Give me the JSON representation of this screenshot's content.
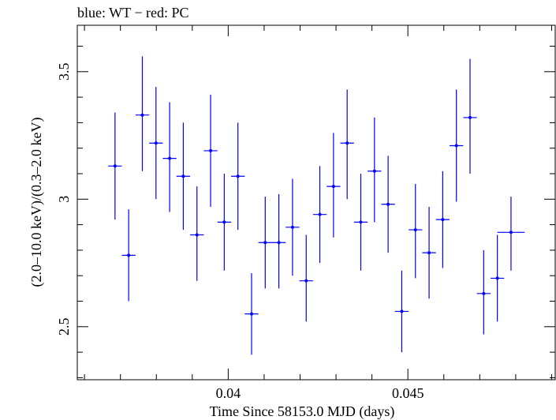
{
  "chart_data": {
    "type": "scatter",
    "title": "blue: WT − red: PC",
    "xlabel": "Time Since 58153.0 MJD (days)",
    "ylabel": "(2.0–10.0 keV)/(0.3–2.0 keV)",
    "xlim": [
      0.0358,
      0.0491
    ],
    "ylim": [
      2.292,
      3.682
    ],
    "x_ticks": [
      {
        "value": 0.04,
        "label": "0.04"
      },
      {
        "value": 0.045,
        "label": "0.045"
      }
    ],
    "y_ticks": [
      {
        "value": 2.5,
        "label": "2.5"
      },
      {
        "value": 3.0,
        "label": "3"
      },
      {
        "value": 3.5,
        "label": "3.5"
      }
    ],
    "grid": false,
    "series": [
      {
        "color": "#0000ff",
        "points": [
          {
            "x": 0.03685,
            "xerr": 0.00019,
            "y": 3.13,
            "ylo": 2.92,
            "yhi": 3.34
          },
          {
            "x": 0.03723,
            "xerr": 0.00019,
            "y": 2.78,
            "ylo": 2.6,
            "yhi": 2.96
          },
          {
            "x": 0.03761,
            "xerr": 0.00019,
            "y": 3.33,
            "ylo": 3.11,
            "yhi": 3.56
          },
          {
            "x": 0.03799,
            "xerr": 0.00019,
            "y": 3.22,
            "ylo": 3.0,
            "yhi": 3.44
          },
          {
            "x": 0.03837,
            "xerr": 0.00019,
            "y": 3.16,
            "ylo": 2.95,
            "yhi": 3.38
          },
          {
            "x": 0.03875,
            "xerr": 0.00019,
            "y": 3.09,
            "ylo": 2.88,
            "yhi": 3.3
          },
          {
            "x": 0.03913,
            "xerr": 0.00019,
            "y": 2.86,
            "ylo": 2.68,
            "yhi": 3.05
          },
          {
            "x": 0.03951,
            "xerr": 0.00019,
            "y": 3.19,
            "ylo": 2.97,
            "yhi": 3.41
          },
          {
            "x": 0.03989,
            "xerr": 0.00019,
            "y": 2.91,
            "ylo": 2.72,
            "yhi": 3.1
          },
          {
            "x": 0.04027,
            "xerr": 0.00019,
            "y": 3.09,
            "ylo": 2.88,
            "yhi": 3.3
          },
          {
            "x": 0.04065,
            "xerr": 0.00019,
            "y": 2.55,
            "ylo": 2.39,
            "yhi": 2.71
          },
          {
            "x": 0.04103,
            "xerr": 0.00019,
            "y": 2.83,
            "ylo": 2.65,
            "yhi": 3.01
          },
          {
            "x": 0.04141,
            "xerr": 0.00019,
            "y": 2.83,
            "ylo": 2.65,
            "yhi": 3.02
          },
          {
            "x": 0.04179,
            "xerr": 0.00019,
            "y": 2.89,
            "ylo": 2.7,
            "yhi": 3.08
          },
          {
            "x": 0.04217,
            "xerr": 0.00019,
            "y": 2.68,
            "ylo": 2.52,
            "yhi": 2.86
          },
          {
            "x": 0.04255,
            "xerr": 0.00019,
            "y": 2.94,
            "ylo": 2.75,
            "yhi": 3.13
          },
          {
            "x": 0.04293,
            "xerr": 0.00019,
            "y": 3.05,
            "ylo": 2.85,
            "yhi": 3.26
          },
          {
            "x": 0.04331,
            "xerr": 0.00019,
            "y": 3.22,
            "ylo": 3.0,
            "yhi": 3.43
          },
          {
            "x": 0.04369,
            "xerr": 0.00019,
            "y": 2.91,
            "ylo": 2.72,
            "yhi": 3.1
          },
          {
            "x": 0.04407,
            "xerr": 0.00019,
            "y": 3.11,
            "ylo": 2.91,
            "yhi": 3.32
          },
          {
            "x": 0.04445,
            "xerr": 0.00019,
            "y": 2.98,
            "ylo": 2.79,
            "yhi": 3.17
          },
          {
            "x": 0.04483,
            "xerr": 0.00019,
            "y": 2.56,
            "ylo": 2.4,
            "yhi": 2.72
          },
          {
            "x": 0.04521,
            "xerr": 0.00019,
            "y": 2.88,
            "ylo": 2.69,
            "yhi": 3.06
          },
          {
            "x": 0.04559,
            "xerr": 0.00019,
            "y": 2.79,
            "ylo": 2.61,
            "yhi": 2.97
          },
          {
            "x": 0.04597,
            "xerr": 0.00019,
            "y": 2.92,
            "ylo": 2.73,
            "yhi": 3.11
          },
          {
            "x": 0.04635,
            "xerr": 0.00019,
            "y": 3.21,
            "ylo": 2.99,
            "yhi": 3.43
          },
          {
            "x": 0.04673,
            "xerr": 0.00019,
            "y": 3.32,
            "ylo": 3.1,
            "yhi": 3.55
          },
          {
            "x": 0.04711,
            "xerr": 0.00019,
            "y": 2.63,
            "ylo": 2.47,
            "yhi": 2.8
          },
          {
            "x": 0.04749,
            "xerr": 0.00019,
            "y": 2.69,
            "ylo": 2.52,
            "yhi": 2.86
          },
          {
            "x": 0.04787,
            "xerr": 0.00038,
            "y": 2.87,
            "ylo": 2.72,
            "yhi": 3.01
          }
        ]
      }
    ]
  }
}
